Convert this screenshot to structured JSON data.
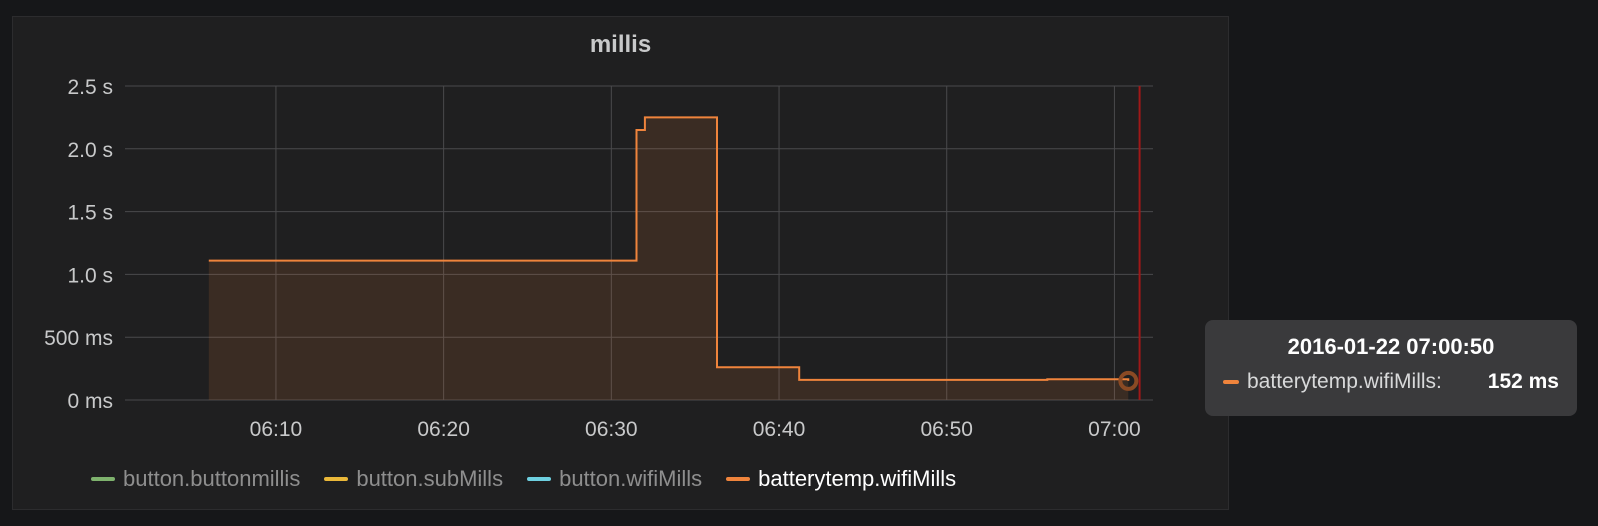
{
  "panel": {
    "title": "millis"
  },
  "tooltip": {
    "time": "2016-01-22 07:00:50",
    "series_name": "batterytemp.wifiMills:",
    "value": "152 ms",
    "color": "#ef843c"
  },
  "legend": [
    {
      "name": "button.buttonmillis",
      "color": "#7eb26d",
      "active": false
    },
    {
      "name": "button.subMills",
      "color": "#eab839",
      "active": false
    },
    {
      "name": "button.wifiMills",
      "color": "#6ed0e0",
      "active": false
    },
    {
      "name": "batterytemp.wifiMills",
      "color": "#ef843c",
      "active": true
    }
  ],
  "chart_data": {
    "type": "area",
    "title": "millis",
    "x_ticks": [
      "06:10",
      "06:20",
      "06:30",
      "06:40",
      "06:50",
      "07:00"
    ],
    "y_ticks": [
      "0 ms",
      "500 ms",
      "1.0 s",
      "1.5 s",
      "2.0 s",
      "2.5 s"
    ],
    "ylim": [
      0,
      2500
    ],
    "grid": true,
    "legend_position": "bottom",
    "series": [
      {
        "name": "batterytemp.wifiMills",
        "color": "#ef843c",
        "step": true,
        "x": [
          "06:06",
          "06:31.5",
          "06:32",
          "06:36.3",
          "06:41.2",
          "06:56",
          "07:00.83"
        ],
        "y": [
          1110,
          2150,
          2250,
          260,
          160,
          165,
          152
        ]
      }
    ],
    "crosshair_x": "07:01.5",
    "highlight_point": {
      "x": "07:00.83",
      "y": 152
    }
  }
}
